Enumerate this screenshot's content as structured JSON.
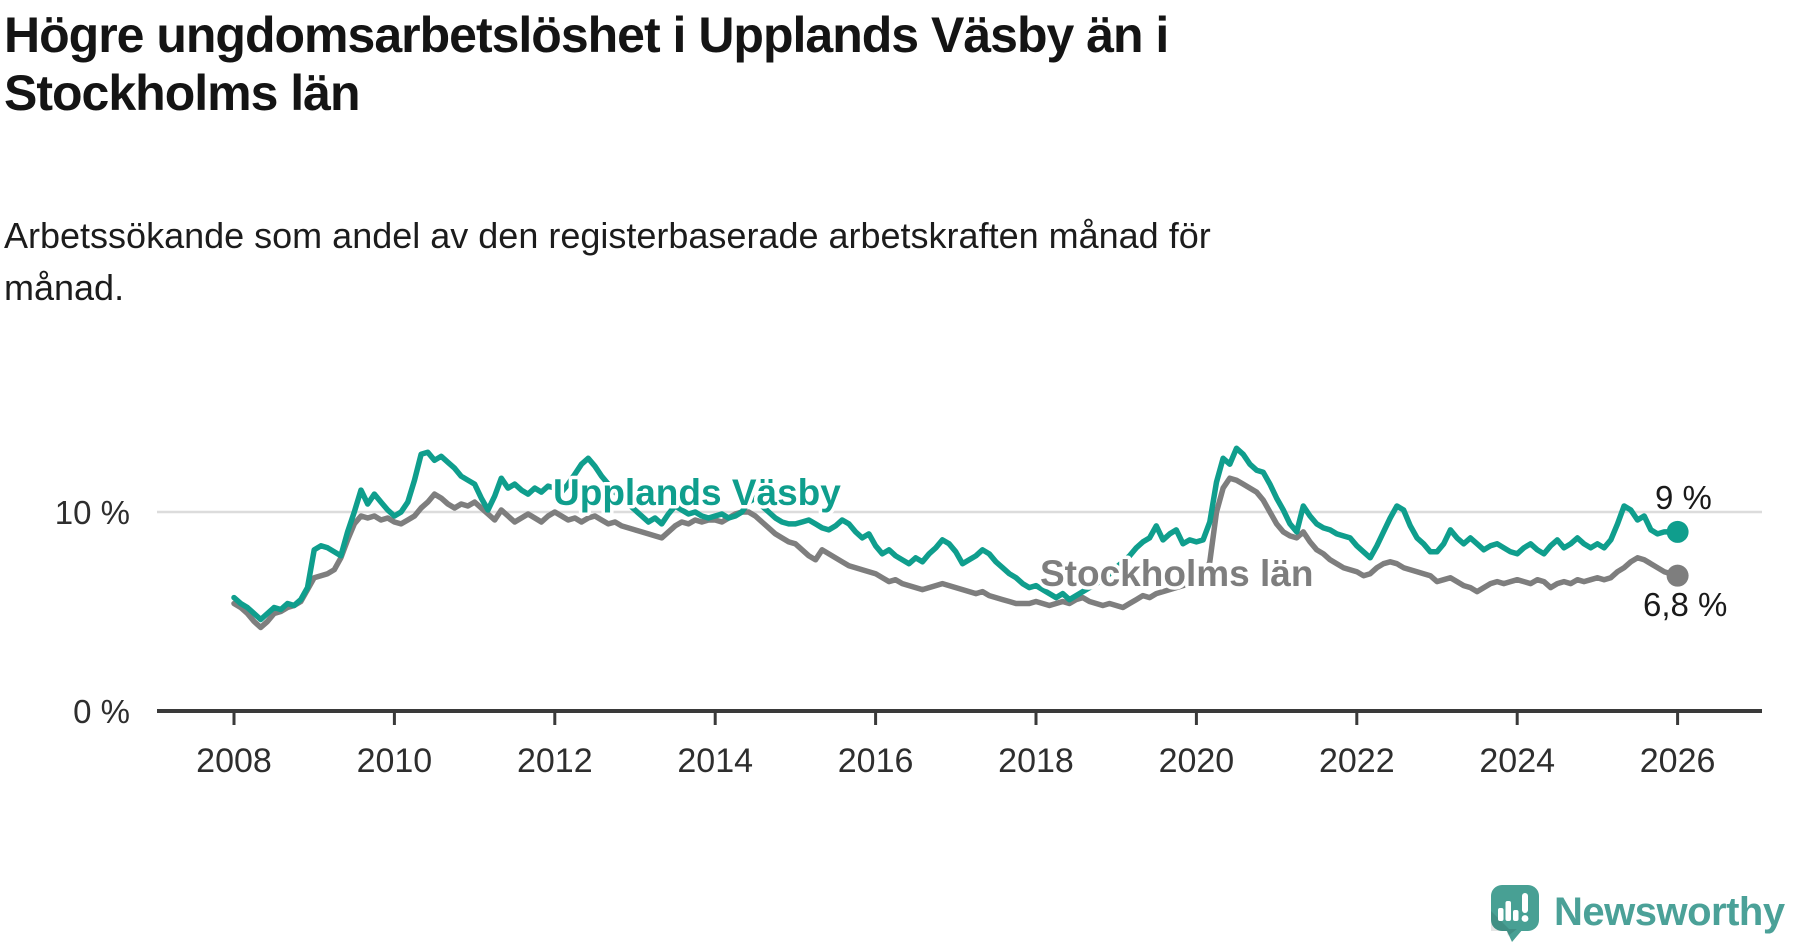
{
  "title_lines": {
    "line1": "Högre ungdomsarbetslöshet i Upplands Väsby än i",
    "line2": "Stockholms län"
  },
  "subtitle_lines": {
    "line1": "Arbetssökande som andel av den registerbaserade arbetskraften månad för",
    "line2": "månad."
  },
  "footer": {
    "brand": "Newsworthy"
  },
  "colors": {
    "focus_series": "#0f9e8d",
    "comparison_series": "#7e7e7e",
    "gridline": "#dcdcdc",
    "axis": "#3a3a3a",
    "tick_text": "#2e2e2e",
    "end_label_text": "#1a1a1a",
    "logo": "#4ba198"
  },
  "chart_data": {
    "type": "line",
    "title": "Högre ungdomsarbetslöshet i Upplands Väsby än i Stockholms län",
    "subtitle": "Arbetssökande som andel av den registerbaserade arbetskraften månad för månad.",
    "xlabel": "",
    "ylabel": "%",
    "x_start": "2008-01",
    "x_end": "2026-01",
    "x_step_months": 1,
    "x_ticks": [
      2008,
      2010,
      2012,
      2014,
      2016,
      2018,
      2020,
      2022,
      2024,
      2026
    ],
    "y_ticks": [
      {
        "value": 0,
        "label": "0 %",
        "grid": false
      },
      {
        "value": 10,
        "label": "10 %",
        "grid": true
      }
    ],
    "ylim": [
      0,
      14.8
    ],
    "grid": "horizontal-10-only",
    "legend_position": "inline-labels",
    "series": [
      {
        "name": "Stockholms län",
        "color": "#7e7e7e",
        "end_label": "6,8 %",
        "end_value": 6.8,
        "values": [
          5.4,
          5.2,
          4.9,
          4.5,
          4.2,
          4.5,
          4.9,
          5.0,
          5.2,
          5.3,
          5.5,
          6.1,
          6.7,
          6.8,
          6.9,
          7.1,
          7.7,
          8.6,
          9.4,
          9.8,
          9.7,
          9.8,
          9.6,
          9.7,
          9.5,
          9.4,
          9.6,
          9.8,
          10.2,
          10.5,
          10.9,
          10.7,
          10.4,
          10.2,
          10.4,
          10.3,
          10.5,
          10.2,
          9.9,
          9.6,
          10.1,
          9.8,
          9.5,
          9.7,
          9.9,
          9.7,
          9.5,
          9.8,
          10.0,
          9.8,
          9.6,
          9.7,
          9.5,
          9.7,
          9.8,
          9.6,
          9.4,
          9.5,
          9.3,
          9.2,
          9.1,
          9.0,
          8.9,
          8.8,
          8.7,
          9.0,
          9.3,
          9.5,
          9.4,
          9.6,
          9.5,
          9.6,
          9.6,
          9.5,
          9.7,
          9.9,
          10.0,
          10.0,
          9.8,
          9.5,
          9.2,
          8.9,
          8.7,
          8.5,
          8.4,
          8.1,
          7.8,
          7.6,
          8.1,
          7.9,
          7.7,
          7.5,
          7.3,
          7.2,
          7.1,
          7.0,
          6.9,
          6.7,
          6.5,
          6.6,
          6.4,
          6.3,
          6.2,
          6.1,
          6.2,
          6.3,
          6.4,
          6.3,
          6.2,
          6.1,
          6.0,
          5.9,
          6.0,
          5.8,
          5.7,
          5.6,
          5.5,
          5.4,
          5.4,
          5.4,
          5.5,
          5.4,
          5.3,
          5.4,
          5.5,
          5.4,
          5.6,
          5.7,
          5.5,
          5.4,
          5.3,
          5.4,
          5.3,
          5.2,
          5.4,
          5.6,
          5.8,
          5.7,
          5.9,
          6.0,
          6.1,
          6.2,
          6.3,
          6.4,
          6.4,
          6.5,
          7.5,
          10.0,
          11.2,
          11.7,
          11.6,
          11.4,
          11.2,
          11.0,
          10.6,
          10.0,
          9.4,
          9.0,
          8.8,
          8.7,
          9.0,
          8.5,
          8.1,
          7.9,
          7.6,
          7.4,
          7.2,
          7.1,
          7.0,
          6.8,
          6.9,
          7.2,
          7.4,
          7.5,
          7.4,
          7.2,
          7.1,
          7.0,
          6.9,
          6.8,
          6.5,
          6.6,
          6.7,
          6.5,
          6.3,
          6.2,
          6.0,
          6.2,
          6.4,
          6.5,
          6.4,
          6.5,
          6.6,
          6.5,
          6.4,
          6.6,
          6.5,
          6.2,
          6.4,
          6.5,
          6.4,
          6.6,
          6.5,
          6.6,
          6.7,
          6.6,
          6.7,
          7.0,
          7.2,
          7.5,
          7.7,
          7.6,
          7.4,
          7.2,
          7.0,
          6.9,
          6.8
        ]
      },
      {
        "name": "Upplands Väsby",
        "color": "#0f9e8d",
        "end_label": "9 %",
        "end_value": 9.0,
        "values": [
          5.7,
          5.4,
          5.2,
          4.9,
          4.6,
          4.9,
          5.2,
          5.1,
          5.4,
          5.3,
          5.6,
          6.2,
          8.1,
          8.3,
          8.2,
          8.0,
          7.8,
          9.0,
          10.0,
          11.1,
          10.4,
          10.9,
          10.5,
          10.1,
          9.8,
          10.0,
          10.5,
          11.6,
          12.9,
          13.0,
          12.6,
          12.8,
          12.5,
          12.2,
          11.8,
          11.6,
          11.4,
          10.7,
          10.1,
          10.8,
          11.7,
          11.2,
          11.4,
          11.1,
          10.9,
          11.2,
          11.0,
          11.3,
          11.2,
          11.0,
          11.4,
          11.9,
          12.4,
          12.7,
          12.3,
          11.8,
          11.4,
          11.0,
          10.7,
          10.4,
          10.1,
          9.8,
          9.5,
          9.7,
          9.4,
          9.9,
          10.3,
          10.1,
          9.9,
          10.0,
          9.8,
          9.7,
          9.8,
          9.9,
          9.7,
          9.8,
          10.0,
          10.5,
          10.7,
          10.3,
          10.0,
          9.7,
          9.5,
          9.4,
          9.4,
          9.5,
          9.6,
          9.4,
          9.2,
          9.1,
          9.3,
          9.6,
          9.4,
          9.0,
          8.7,
          8.9,
          8.3,
          7.9,
          8.1,
          7.8,
          7.6,
          7.4,
          7.7,
          7.5,
          7.9,
          8.2,
          8.6,
          8.4,
          8.0,
          7.4,
          7.6,
          7.8,
          8.1,
          7.9,
          7.5,
          7.2,
          6.9,
          6.7,
          6.4,
          6.2,
          6.3,
          6.1,
          5.9,
          5.7,
          5.9,
          5.6,
          5.8,
          6.0,
          6.2,
          6.4,
          6.6,
          6.9,
          7.2,
          7.5,
          7.8,
          8.2,
          8.5,
          8.7,
          9.3,
          8.6,
          8.9,
          9.1,
          8.4,
          8.6,
          8.5,
          8.6,
          9.5,
          11.5,
          12.7,
          12.4,
          13.2,
          12.9,
          12.4,
          12.1,
          12.0,
          11.4,
          10.7,
          10.1,
          9.4,
          9.0,
          10.3,
          9.8,
          9.4,
          9.2,
          9.1,
          8.9,
          8.8,
          8.7,
          8.3,
          8.0,
          7.7,
          8.3,
          9.0,
          9.7,
          10.3,
          10.1,
          9.3,
          8.7,
          8.4,
          8.0,
          8.0,
          8.4,
          9.1,
          8.7,
          8.4,
          8.7,
          8.4,
          8.1,
          8.3,
          8.4,
          8.2,
          8.0,
          7.9,
          8.2,
          8.4,
          8.1,
          7.9,
          8.3,
          8.6,
          8.2,
          8.4,
          8.7,
          8.4,
          8.2,
          8.4,
          8.2,
          8.6,
          9.4,
          10.3,
          10.1,
          9.6,
          9.8,
          9.1,
          8.9,
          9.0,
          9.0,
          9.0
        ]
      }
    ]
  }
}
